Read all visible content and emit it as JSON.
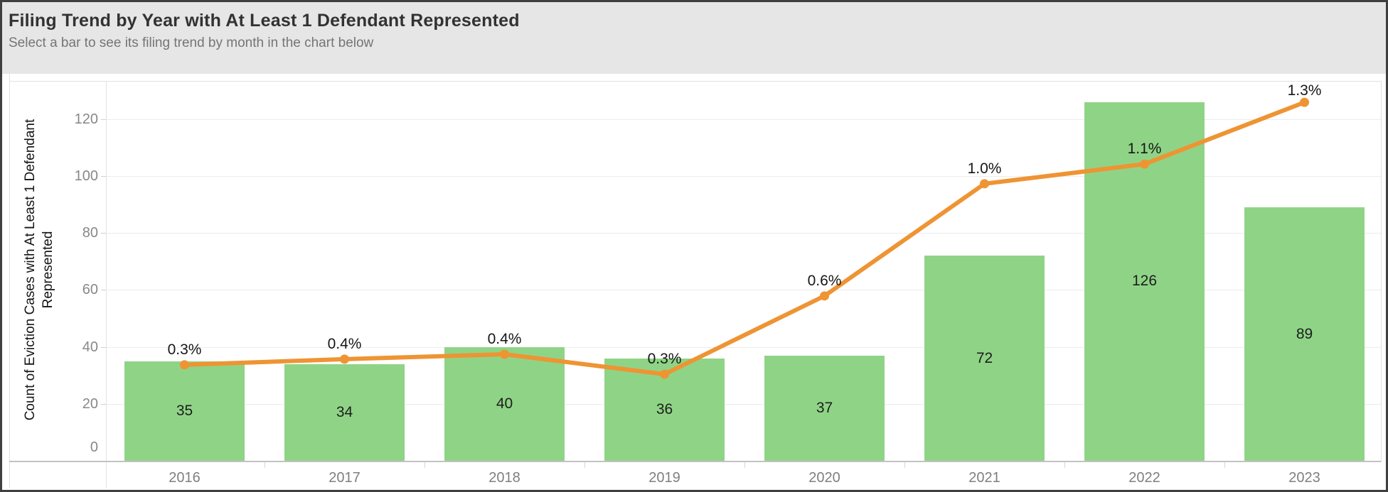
{
  "header": {
    "title": "Filing Trend by Year with At Least 1 Defendant Represented",
    "subtitle": "Select a bar to see its filing trend by month in the chart below"
  },
  "y_axis": {
    "title": "Count of Eviction Cases with At Least 1 Defendant Represented",
    "title_lines": [
      "Count of Eviction Cases with At Least 1 Defendant",
      "Represented"
    ]
  },
  "chart_data": {
    "type": "bar",
    "title": "Filing Trend by Year with At Least 1 Defendant Represented",
    "xlabel": "",
    "ylabel": "Count of Eviction Cases with At Least 1 Defendant Represented",
    "categories": [
      "2016",
      "2017",
      "2018",
      "2019",
      "2020",
      "2021",
      "2022",
      "2023"
    ],
    "series": [
      {
        "type": "bar",
        "name": "Count of Eviction Cases with At Least 1 Defendant Represented",
        "values": [
          35,
          34,
          40,
          36,
          37,
          72,
          126,
          89
        ],
        "labels": [
          "35",
          "34",
          "40",
          "36",
          "37",
          "72",
          "126",
          "89"
        ],
        "color": "#8fd486"
      },
      {
        "type": "line",
        "labels": [
          "0.3%",
          "0.4%",
          "0.4%",
          "0.3%",
          "0.6%",
          "1.0%",
          "1.1%",
          "1.3%"
        ],
        "values": [
          0.3,
          0.4,
          0.4,
          0.3,
          0.6,
          1.0,
          1.1,
          1.3
        ],
        "positions_on_count_axis": [
          33.7,
          35.7,
          37.4,
          30.4,
          57.9,
          97.3,
          104.2,
          125.9
        ],
        "color": "#ee9433",
        "marker": "circle"
      }
    ],
    "yticks": [
      0,
      20,
      40,
      60,
      80,
      100,
      120
    ],
    "ylim": [
      0,
      133
    ],
    "grid": true,
    "legend": false
  },
  "colors": {
    "bar_green": "#8fd486",
    "line_orange": "#ee9433",
    "header_bg": "#e6e6e6",
    "gridline": "#ececec",
    "axis_line": "#c2c2c2",
    "tick_text": "#888888",
    "year_text": "#7f7f7f"
  }
}
